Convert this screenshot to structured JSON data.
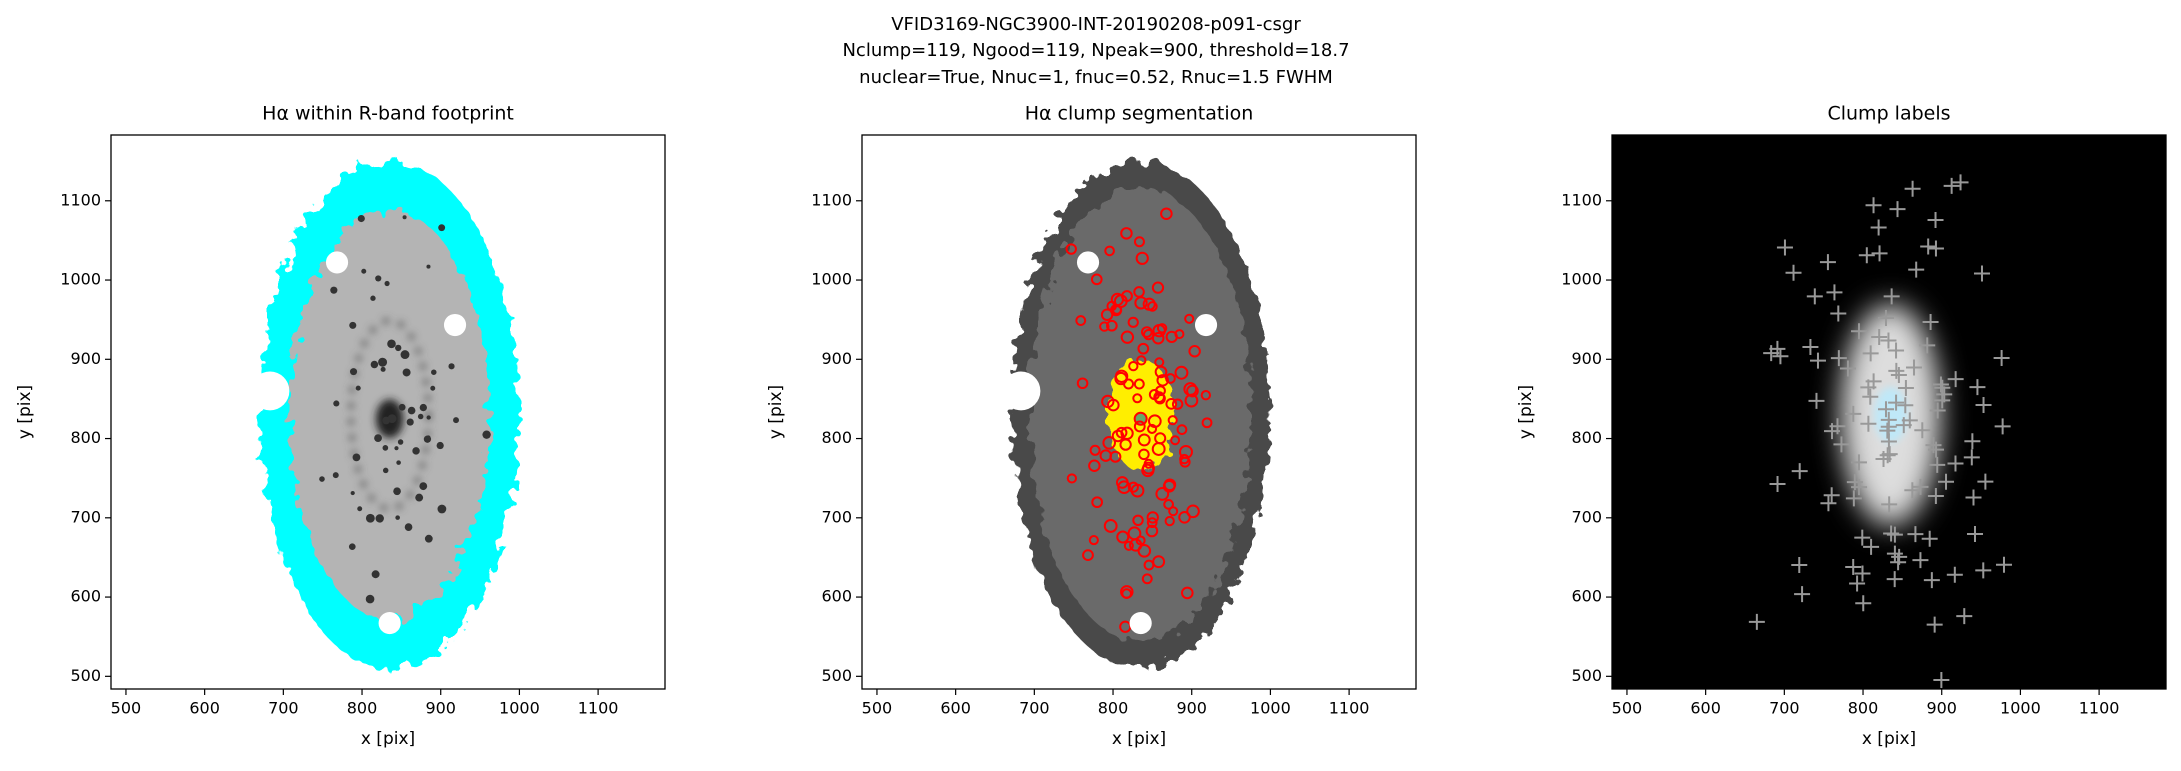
{
  "suptitle": [
    "VFID3169-NGC3900-INT-20190208-p091-csgr",
    "Nclump=119, Ngood=119, Npeak=900, threshold=18.7",
    "nuclear=True, Nnuc=1, fnuc=0.52, Rnuc=1.5 FWHM"
  ],
  "chart_data": [
    {
      "type": "image",
      "title": "Hα within R-band footprint",
      "xlabel": "x [pix]",
      "ylabel": "y [pix]",
      "xlim": [
        481,
        1185
      ],
      "ylim": [
        484,
        1183
      ],
      "xticks": [
        500,
        600,
        700,
        800,
        900,
        1000,
        1100
      ],
      "yticks": [
        500,
        600,
        700,
        800,
        900,
        1000,
        1100
      ]
    },
    {
      "type": "image",
      "title": "Hα clump segmentation",
      "xlabel": "x [pix]",
      "ylabel": "y [pix]",
      "xlim": [
        481,
        1185
      ],
      "ylim": [
        484,
        1183
      ],
      "xticks": [
        500,
        600,
        700,
        800,
        900,
        1000,
        1100
      ],
      "yticks": [
        500,
        600,
        700,
        800,
        900,
        1000,
        1100
      ]
    },
    {
      "type": "image",
      "title": "Clump labels",
      "xlabel": "x [pix]",
      "ylabel": "y [pix]",
      "xlim": [
        481,
        1185
      ],
      "ylim": [
        484,
        1183
      ],
      "xticks": [
        500,
        600,
        700,
        800,
        900,
        1000,
        1100
      ],
      "yticks": [
        500,
        600,
        700,
        800,
        900,
        1000,
        1100
      ]
    }
  ]
}
